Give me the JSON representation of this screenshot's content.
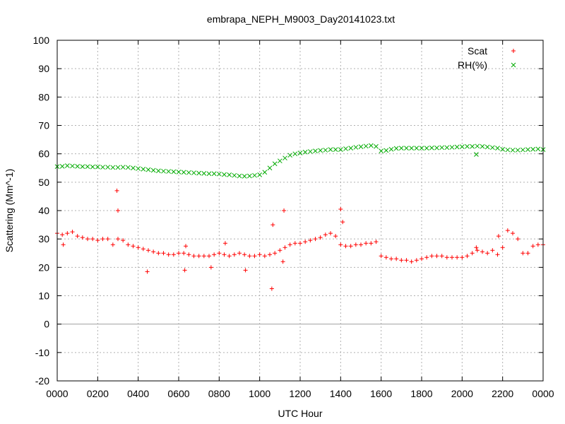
{
  "chart_data": {
    "type": "scatter",
    "title": "embrapa_NEPH_M9003_Day20141023.txt",
    "xlabel": "UTC Hour",
    "ylabel": "Scattering (Mm^-1)",
    "xlim": [
      0,
      24
    ],
    "ylim": [
      -20,
      100
    ],
    "x_tick_values": [
      0,
      2,
      4,
      6,
      8,
      10,
      12,
      14,
      16,
      18,
      20,
      22,
      24
    ],
    "x_tick_labels": [
      "0000",
      "0200",
      "0400",
      "0600",
      "0800",
      "1000",
      "1200",
      "1400",
      "1600",
      "1800",
      "2000",
      "2200",
      "0000"
    ],
    "y_tick_values": [
      -20,
      -10,
      0,
      10,
      20,
      30,
      40,
      50,
      60,
      70,
      80,
      90,
      100
    ],
    "y_tick_labels": [
      "-20",
      "-10",
      "0",
      "10",
      "20",
      "30",
      "40",
      "50",
      "60",
      "70",
      "80",
      "90",
      "100"
    ],
    "grid": true,
    "zero_line": true,
    "legend_position": "top-right",
    "series": [
      {
        "name": "Scat",
        "marker": "+",
        "color": "#ff0000",
        "x": [
          0,
          0.25,
          0.5,
          0.75,
          1,
          1.25,
          1.5,
          1.75,
          2,
          2.25,
          2.5,
          2.75,
          3,
          3.25,
          3.5,
          3.75,
          4,
          4.25,
          4.5,
          4.75,
          5,
          5.25,
          5.5,
          5.75,
          6,
          6.25,
          6.5,
          6.75,
          7,
          7.25,
          7.5,
          7.75,
          8,
          8.25,
          8.5,
          8.75,
          9,
          9.25,
          9.5,
          9.75,
          10,
          10.25,
          10.5,
          10.75,
          11,
          11.25,
          11.5,
          11.75,
          12,
          12.25,
          12.5,
          12.75,
          13,
          13.25,
          13.5,
          13.75,
          14,
          14.25,
          14.5,
          14.75,
          15,
          15.25,
          15.5,
          15.75,
          16,
          16.25,
          16.5,
          16.75,
          17,
          17.25,
          17.5,
          17.75,
          18,
          18.25,
          18.5,
          18.75,
          19,
          19.25,
          19.5,
          19.75,
          20,
          20.25,
          20.5,
          20.75,
          21,
          21.25,
          21.5,
          21.75,
          22,
          22.25,
          22.5,
          22.75,
          23,
          23.25,
          23.5,
          23.75,
          24,
          2.95,
          3.0,
          0.3,
          4.45,
          6.3,
          6.35,
          7.6,
          8.3,
          9.3,
          10.6,
          10.65,
          11.2,
          11.15,
          14.0,
          14.1,
          20.7,
          21.8
        ],
        "values": [
          32,
          31.5,
          32,
          32.5,
          31,
          30.5,
          30,
          30,
          29.5,
          30,
          30,
          28,
          30,
          29.5,
          28,
          27.5,
          27,
          26.5,
          26,
          25.5,
          25,
          25,
          24.5,
          24.5,
          25,
          25,
          24.5,
          24,
          24,
          24,
          24,
          24.5,
          25,
          24.5,
          24,
          24.5,
          25,
          24.5,
          24,
          24,
          24.5,
          24,
          24.5,
          25,
          26,
          27,
          28,
          28.5,
          28.5,
          29,
          29.5,
          30,
          30.5,
          31.5,
          32,
          31,
          28,
          27.5,
          27.5,
          28,
          28,
          28.5,
          28.5,
          29,
          24,
          23.5,
          23,
          23,
          22.5,
          22.5,
          22,
          22.5,
          23,
          23.5,
          24,
          24,
          24,
          23.5,
          23.5,
          23.5,
          23.5,
          24,
          25,
          26,
          25.5,
          25,
          26,
          24.5,
          27,
          33,
          32,
          30,
          25,
          25,
          27.5,
          28,
          28,
          47,
          40,
          28,
          18.5,
          19,
          27.5,
          20,
          28.5,
          19,
          12.5,
          35,
          40,
          22,
          40.5,
          36,
          27,
          31
        ]
      },
      {
        "name": "RH(%)",
        "marker": "x",
        "color": "#00aa00",
        "x": [
          0,
          0.25,
          0.5,
          0.75,
          1,
          1.25,
          1.5,
          1.75,
          2,
          2.25,
          2.5,
          2.75,
          3,
          3.25,
          3.5,
          3.75,
          4,
          4.25,
          4.5,
          4.75,
          5,
          5.25,
          5.5,
          5.75,
          6,
          6.25,
          6.5,
          6.75,
          7,
          7.25,
          7.5,
          7.75,
          8,
          8.25,
          8.5,
          8.75,
          9,
          9.25,
          9.5,
          9.75,
          10,
          10.25,
          10.5,
          10.75,
          11,
          11.25,
          11.5,
          11.75,
          12,
          12.25,
          12.5,
          12.75,
          13,
          13.25,
          13.5,
          13.75,
          14,
          14.25,
          14.5,
          14.75,
          15,
          15.25,
          15.5,
          15.75,
          16,
          16.25,
          16.5,
          16.75,
          17,
          17.25,
          17.5,
          17.75,
          18,
          18.25,
          18.5,
          18.75,
          19,
          19.25,
          19.5,
          19.75,
          20,
          20.25,
          20.5,
          20.75,
          21,
          21.25,
          21.5,
          21.75,
          22,
          22.25,
          22.5,
          22.75,
          23,
          23.25,
          23.5,
          23.75,
          24,
          20.7
        ],
        "values": [
          55.5,
          55.6,
          55.8,
          55.7,
          55.6,
          55.5,
          55.5,
          55.4,
          55.4,
          55.3,
          55.3,
          55.2,
          55.2,
          55.3,
          55.2,
          55,
          54.8,
          54.6,
          54.4,
          54.2,
          54,
          53.9,
          53.8,
          53.7,
          53.6,
          53.5,
          53.4,
          53.3,
          53.2,
          53.1,
          53,
          53,
          52.9,
          52.7,
          52.6,
          52.4,
          52.2,
          52.1,
          52.2,
          52.4,
          52.6,
          53.5,
          55,
          56.5,
          57.5,
          58.5,
          59.5,
          60,
          60.3,
          60.6,
          60.8,
          61,
          61.2,
          61.3,
          61.5,
          61.5,
          61.5,
          61.8,
          62,
          62.3,
          62.5,
          62.7,
          62.9,
          62.6,
          61,
          61.2,
          61.6,
          61.9,
          62,
          62,
          62,
          62,
          62,
          62,
          62.1,
          62.1,
          62.2,
          62.2,
          62.3,
          62.4,
          62.5,
          62.6,
          62.6,
          62.7,
          62.6,
          62.4,
          62.2,
          62,
          61.6,
          61.4,
          61.3,
          61.3,
          61.4,
          61.5,
          61.6,
          61.7,
          61.5,
          59.8
        ]
      }
    ]
  }
}
